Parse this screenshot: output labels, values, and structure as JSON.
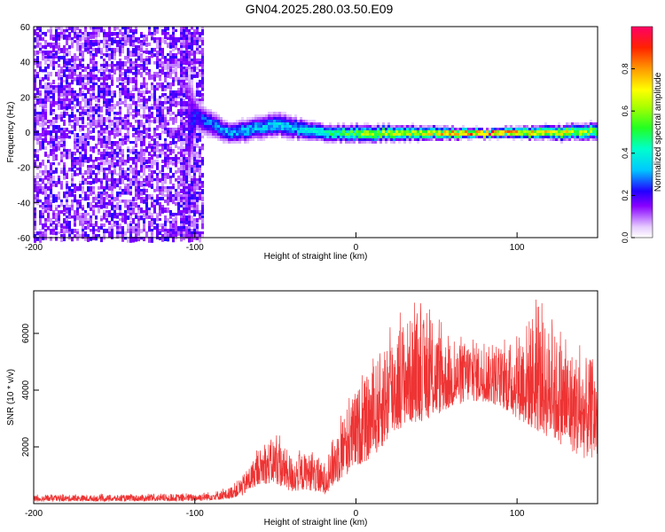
{
  "title": "GN04.2025.280.03.50.E09",
  "chart_data": [
    {
      "type": "heatmap",
      "xlabel": "Height of straight line (km)",
      "ylabel": "Frequency (Hz)",
      "xlim": [
        -200,
        150
      ],
      "ylim": [
        -60,
        60
      ],
      "xticks": [
        -200,
        -100,
        0,
        100
      ],
      "yticks": [
        60,
        40,
        20,
        0,
        -20,
        -40,
        -60
      ],
      "colorbar": {
        "label": "Normalized spectral amplitude",
        "range": [
          0,
          1
        ],
        "ticks": [
          "0.0",
          "0.2",
          "0.4",
          "0.6",
          "0.8"
        ]
      },
      "description_points": [
        {
          "x": -200,
          "spread_hz": 60,
          "level": 0.15
        },
        {
          "x": -110,
          "spread_hz": 60,
          "level": 0.15
        },
        {
          "x": -100,
          "center_hz": 10,
          "spread_hz": 8,
          "level": 0.25
        },
        {
          "x": -80,
          "center_hz": 0,
          "spread_hz": 5,
          "level": 0.35
        },
        {
          "x": -50,
          "center_hz": 5,
          "spread_hz": 6,
          "level": 0.35
        },
        {
          "x": -20,
          "center_hz": 0,
          "spread_hz": 4,
          "level": 0.45
        },
        {
          "x": 0,
          "center_hz": 0,
          "spread_hz": 4,
          "level": 0.6
        },
        {
          "x": 50,
          "center_hz": 0,
          "spread_hz": 3,
          "level": 0.75
        },
        {
          "x": 80,
          "center_hz": 0,
          "spread_hz": 2,
          "level": 0.95
        },
        {
          "x": 150,
          "center_hz": 1,
          "spread_hz": 4,
          "level": 0.6
        }
      ]
    },
    {
      "type": "line",
      "xlabel": "Height of straight line (km)",
      "ylabel": "SNR (10 * v/v)",
      "xlim": [
        -200,
        150
      ],
      "ylim": [
        0,
        7500
      ],
      "xticks": [
        -200,
        -100,
        0,
        100
      ],
      "yticks": [
        2000,
        4000,
        6000
      ],
      "color": "#ee3333",
      "envelope": {
        "x": [
          -200,
          -150,
          -100,
          -80,
          -70,
          -60,
          -50,
          -40,
          -30,
          -20,
          -10,
          0,
          10,
          20,
          30,
          40,
          50,
          60,
          70,
          80,
          90,
          100,
          110,
          120,
          130,
          140,
          150
        ],
        "low": [
          80,
          80,
          90,
          150,
          300,
          700,
          700,
          400,
          500,
          300,
          800,
          1300,
          1600,
          2200,
          2800,
          2900,
          3100,
          3400,
          3600,
          3600,
          3400,
          3000,
          2600,
          2300,
          2000,
          1600,
          1600
        ],
        "high": [
          300,
          300,
          350,
          500,
          1000,
          1900,
          2400,
          1700,
          1800,
          1400,
          3000,
          4000,
          4700,
          6000,
          6500,
          6600,
          6200,
          5500,
          5800,
          5600,
          5400,
          5900,
          6800,
          6200,
          5600,
          5200,
          5000
        ]
      }
    }
  ]
}
